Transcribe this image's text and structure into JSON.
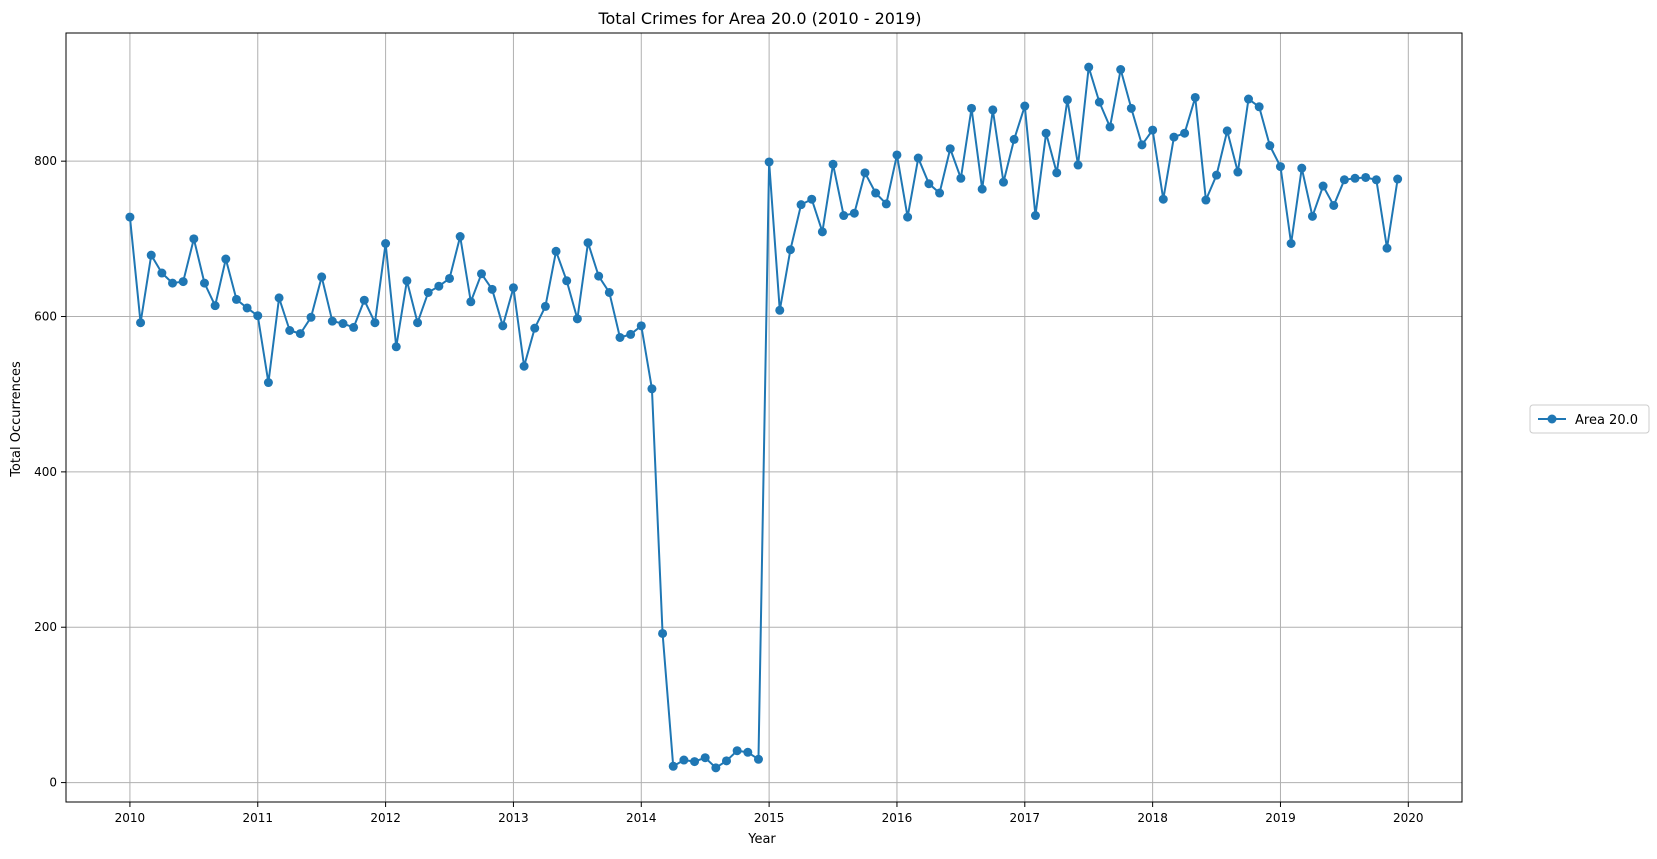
{
  "chart_data": {
    "type": "line",
    "title": "Total Crimes for Area 20.0 (2010 - 2019)",
    "xlabel": "Year",
    "ylabel": "Total Occurrences",
    "xlim": [
      2009.5,
      2020.42
    ],
    "ylim": [
      -25,
      965
    ],
    "xticks": [
      2010,
      2011,
      2012,
      2013,
      2014,
      2015,
      2016,
      2017,
      2018,
      2019,
      2020
    ],
    "yticks": [
      0,
      200,
      400,
      600,
      800
    ],
    "grid": true,
    "legend_position": "right",
    "series_color": "#1f77b4",
    "series": [
      {
        "name": "Area 20.0",
        "start": "2010-01",
        "frequency": "monthly",
        "values": [
          728,
          592,
          679,
          656,
          643,
          645,
          700,
          643,
          614,
          674,
          622,
          611,
          601,
          515,
          624,
          582,
          578,
          599,
          651,
          594,
          591,
          586,
          621,
          592,
          694,
          561,
          646,
          592,
          631,
          639,
          649,
          703,
          619,
          655,
          635,
          588,
          637,
          536,
          585,
          613,
          684,
          646,
          597,
          695,
          652,
          631,
          573,
          577,
          588,
          507,
          192,
          21,
          29,
          27,
          32,
          19,
          28,
          41,
          39,
          30,
          799,
          608,
          686,
          744,
          751,
          709,
          796,
          730,
          733,
          785,
          759,
          745,
          808,
          728,
          804,
          771,
          759,
          816,
          778,
          868,
          764,
          866,
          773,
          828,
          871,
          730,
          836,
          785,
          879,
          795,
          921,
          876,
          844,
          918,
          868,
          821,
          840,
          751,
          831,
          836,
          882,
          750,
          782,
          839,
          786,
          880,
          870,
          820,
          793,
          694,
          791,
          729,
          768,
          743,
          776,
          778,
          779,
          776,
          688,
          777
        ]
      }
    ]
  }
}
